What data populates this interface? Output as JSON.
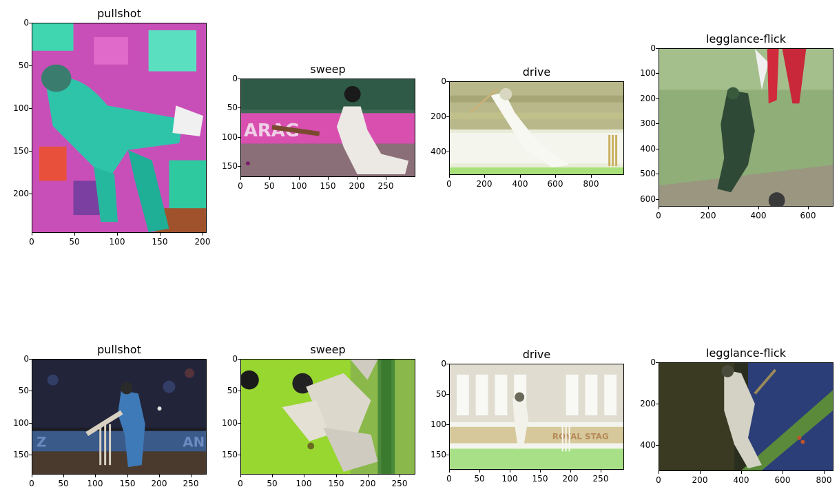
{
  "figure": {
    "panels": [
      {
        "title": "pullshot",
        "x_ticks": [
          "0",
          "50",
          "100",
          "150",
          "200"
        ],
        "y_ticks": [
          "0",
          "50",
          "100",
          "150",
          "200"
        ],
        "image": "cricket batsman playing a pull shot, colour-augmented with magenta and teal tiles"
      },
      {
        "title": "sweep",
        "x_ticks": [
          "0",
          "50",
          "100",
          "150",
          "200",
          "250"
        ],
        "y_ticks": [
          "0",
          "50",
          "100",
          "150"
        ],
        "image": "batsman kneeling to play a sweep in front of a pink advertising board"
      },
      {
        "title": "drive",
        "x_ticks": [
          "0",
          "200",
          "400",
          "600",
          "800"
        ],
        "y_ticks": [
          "0",
          "200",
          "400"
        ],
        "image": "batsman driving, overexposed stadium background"
      },
      {
        "title": "legglance-flick",
        "x_ticks": [
          "0",
          "200",
          "400",
          "600"
        ],
        "y_ticks": [
          "0",
          "100",
          "200",
          "300",
          "400",
          "500",
          "600"
        ],
        "image": "batsman in green flicking off the pads on a green outfield"
      },
      {
        "title": "pullshot",
        "x_ticks": [
          "0",
          "50",
          "100",
          "150",
          "200",
          "250"
        ],
        "y_ticks": [
          "0",
          "50",
          "100",
          "150"
        ],
        "image": "batsman in blue playing a pull shot, dark background"
      },
      {
        "title": "sweep",
        "x_ticks": [
          "0",
          "50",
          "100",
          "150",
          "200",
          "250"
        ],
        "y_ticks": [
          "0",
          "50",
          "100",
          "150"
        ],
        "image": "rotated sweep shot with lime-green colour augmentation"
      },
      {
        "title": "drive",
        "x_ticks": [
          "0",
          "50",
          "100",
          "150",
          "200",
          "250"
        ],
        "y_ticks": [
          "0",
          "50",
          "100",
          "150"
        ],
        "image": "batsman driving, bright stands, Royal Stag boards",
        "board_text": "ROYAL STAG"
      },
      {
        "title": "legglance-flick",
        "x_ticks": [
          "0",
          "200",
          "400",
          "600",
          "800"
        ],
        "y_ticks": [
          "0",
          "200",
          "400"
        ],
        "image": "rotated legglance shot with dark blue and green tones"
      }
    ]
  },
  "colors": {
    "axis": "#000000"
  }
}
